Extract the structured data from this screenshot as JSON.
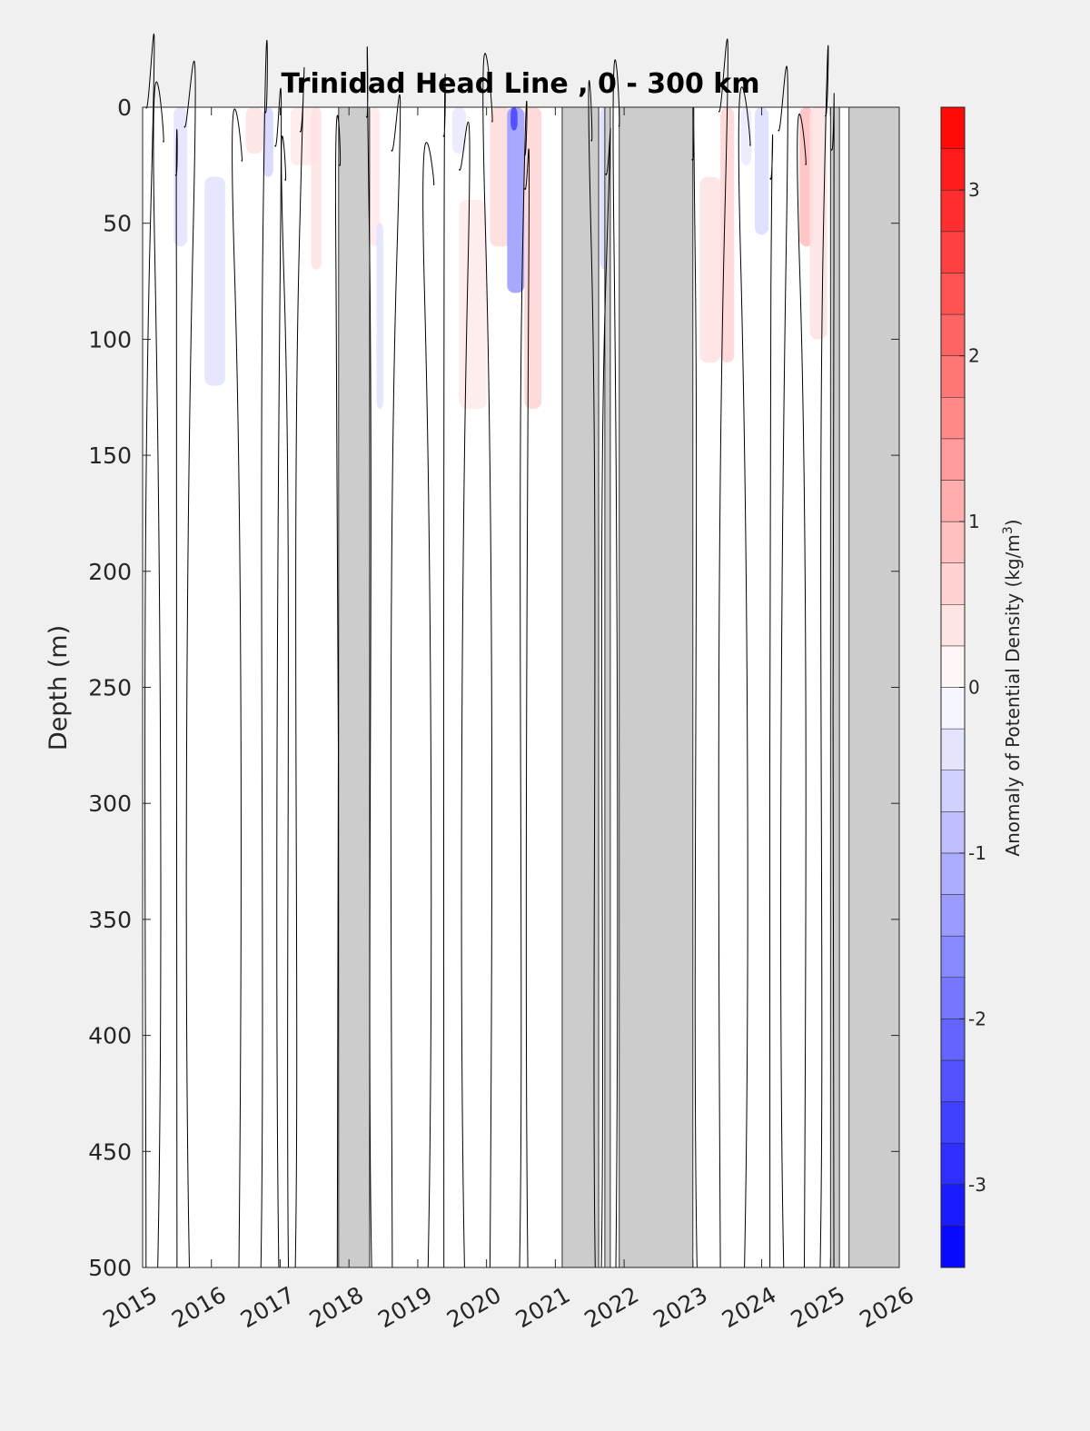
{
  "chart_data": {
    "type": "heatmap",
    "title": "Trinidad Head Line , 0 - 300 km",
    "ylabel": "Depth (m)",
    "xlabel": "",
    "x_ticks": [
      "2015",
      "2016",
      "2017",
      "2018",
      "2019",
      "2020",
      "2021",
      "2022",
      "2023",
      "2024",
      "2025",
      "2026"
    ],
    "xlim": [
      2015,
      2026
    ],
    "y_ticks": [
      0,
      50,
      100,
      150,
      200,
      250,
      300,
      350,
      400,
      450,
      500
    ],
    "ylim": [
      0,
      500
    ],
    "y_reversed": true,
    "colorbar": {
      "label": "Anomaly of Potential Density (kg/m",
      "label_superscript": "3",
      "label_suffix": ")",
      "range": [
        -3.5,
        3.5
      ],
      "ticks": [
        "-3",
        "-2",
        "-1",
        "0",
        "1",
        "2",
        "3"
      ],
      "tick_values": [
        -3,
        -2,
        -1,
        0,
        1,
        2,
        3
      ],
      "step": 0.25,
      "colormap": "blue-white-red"
    },
    "no_data_intervals": [
      [
        2017.85,
        2018.3
      ],
      [
        2021.1,
        2021.63
      ],
      [
        2021.72,
        2021.8
      ],
      [
        2021.93,
        2023.0
      ],
      [
        2025.0,
        2025.13
      ],
      [
        2025.27,
        2026.0
      ]
    ],
    "anomaly_patches": [
      {
        "x": [
          2015.45,
          2015.65
        ],
        "depth": [
          0,
          60
        ],
        "value": -0.4
      },
      {
        "x": [
          2015.9,
          2016.2
        ],
        "depth": [
          30,
          120
        ],
        "value": -0.4
      },
      {
        "x": [
          2016.5,
          2016.75
        ],
        "depth": [
          0,
          20
        ],
        "value": 0.4
      },
      {
        "x": [
          2016.75,
          2016.9
        ],
        "depth": [
          0,
          30
        ],
        "value": -0.6
      },
      {
        "x": [
          2017.15,
          2017.55
        ],
        "depth": [
          0,
          25
        ],
        "value": 0.3
      },
      {
        "x": [
          2017.45,
          2017.6
        ],
        "depth": [
          0,
          70
        ],
        "value": 0.4
      },
      {
        "x": [
          2018.3,
          2018.45
        ],
        "depth": [
          0,
          60
        ],
        "value": 0.3
      },
      {
        "x": [
          2018.4,
          2018.5
        ],
        "depth": [
          50,
          130
        ],
        "value": -0.4
      },
      {
        "x": [
          2019.5,
          2019.7
        ],
        "depth": [
          0,
          20
        ],
        "value": -0.3
      },
      {
        "x": [
          2019.6,
          2020.0
        ],
        "depth": [
          40,
          130
        ],
        "value": 0.3
      },
      {
        "x": [
          2020.05,
          2020.35
        ],
        "depth": [
          0,
          60
        ],
        "value": 0.5
      },
      {
        "x": [
          2020.3,
          2020.55
        ],
        "depth": [
          0,
          80
        ],
        "value": -1.4
      },
      {
        "x": [
          2020.35,
          2020.45
        ],
        "depth": [
          0,
          10
        ],
        "value": -2.6
      },
      {
        "x": [
          2020.55,
          2020.8
        ],
        "depth": [
          0,
          130
        ],
        "value": 0.6
      },
      {
        "x": [
          2021.65,
          2021.8
        ],
        "depth": [
          0,
          70
        ],
        "value": -0.5
      },
      {
        "x": [
          2023.1,
          2023.4
        ],
        "depth": [
          30,
          110
        ],
        "value": 0.4
      },
      {
        "x": [
          2023.4,
          2023.6
        ],
        "depth": [
          0,
          110
        ],
        "value": 0.6
      },
      {
        "x": [
          2023.7,
          2023.85
        ],
        "depth": [
          0,
          25
        ],
        "value": -0.3
      },
      {
        "x": [
          2023.9,
          2024.1
        ],
        "depth": [
          0,
          55
        ],
        "value": -0.5
      },
      {
        "x": [
          2024.55,
          2024.75
        ],
        "depth": [
          0,
          60
        ],
        "value": 0.9
      },
      {
        "x": [
          2024.7,
          2024.95
        ],
        "depth": [
          0,
          100
        ],
        "value": 0.4
      }
    ],
    "contour_level": 0,
    "contour_columns": [
      2015.05,
      2015.22,
      2015.5,
      2015.68,
      2016.4,
      2016.72,
      2016.98,
      2017.12,
      2017.22,
      2017.83,
      2018.33,
      2018.63,
      2019.15,
      2019.38,
      2019.68,
      2020.05,
      2020.48,
      2020.6,
      2021.58,
      2021.67,
      2021.88,
      2023.06,
      2023.4,
      2023.75,
      2024.12,
      2024.32,
      2024.62,
      2024.85,
      2025.05
    ]
  }
}
